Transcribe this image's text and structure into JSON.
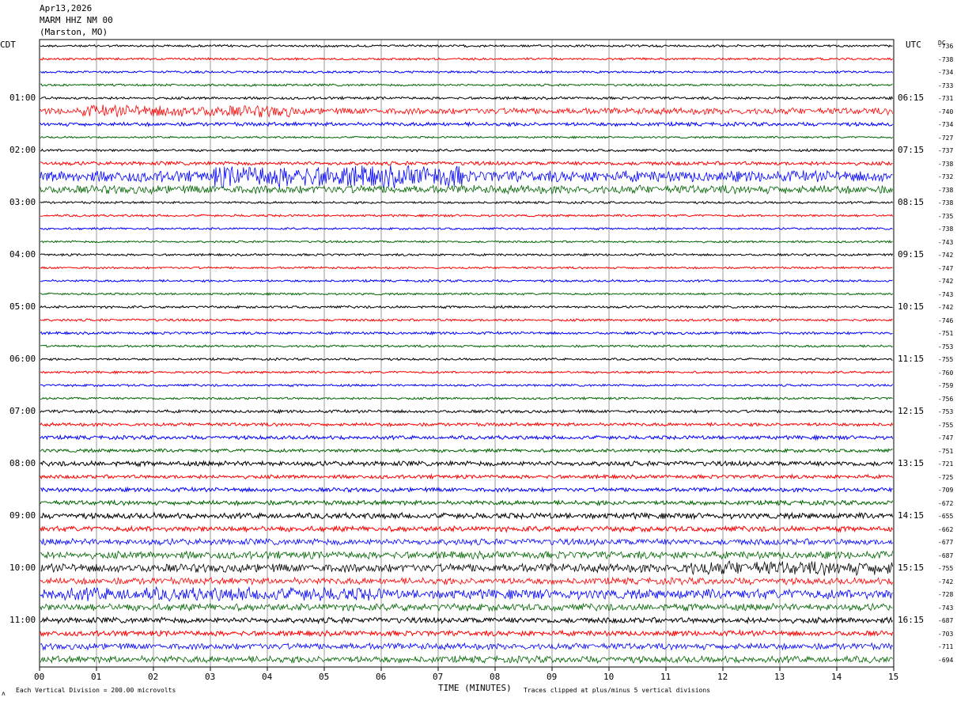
{
  "header": {
    "date": "Apr13,2026",
    "station": "MARM HHZ NM 00",
    "location": "(Marston, MO)"
  },
  "left_zone": "CDT",
  "right_zone": "UTC",
  "dc_header": "DC",
  "footer": {
    "scale_note": "Each Vertical Division =  200.00 microvolts",
    "x_title": "TIME (MINUTES)",
    "clip_note": "Traces clipped at plus/minus 5 vertical divisions",
    "corner_mark": "ʌ"
  },
  "colors": {
    "trace_cycle": [
      "#000000",
      "#ff0000",
      "#0000ff",
      "#006400"
    ],
    "grid": "#000000"
  },
  "chart_data": {
    "type": "line",
    "title": "",
    "xlabel": "TIME (MINUTES)",
    "x_ticks": [
      "00",
      "01",
      "02",
      "03",
      "04",
      "05",
      "06",
      "07",
      "08",
      "09",
      "10",
      "11",
      "12",
      "13",
      "14",
      "15"
    ],
    "xlim": [
      0,
      15
    ],
    "rows_per_hour": 4,
    "minutes_per_row": 15,
    "left_hour_labels": [
      "01:00",
      "02:00",
      "03:00",
      "04:00",
      "05:00",
      "06:00",
      "07:00",
      "08:00",
      "09:00",
      "10:00",
      "11:00"
    ],
    "right_hour_labels": [
      "06:15",
      "07:15",
      "08:15",
      "09:15",
      "10:15",
      "11:15",
      "12:15",
      "13:15",
      "14:15",
      "15:15",
      "16:15"
    ],
    "dc_offsets": [
      "-736",
      "-738",
      "-734",
      "-733",
      "-731",
      "-740",
      "-734",
      "-727",
      "-737",
      "-738",
      "-732",
      "-738",
      "-738",
      "-735",
      "-738",
      "-743",
      "-742",
      "-747",
      "-742",
      "-743",
      "-742",
      "-746",
      "-751",
      "-753",
      "-755",
      "-760",
      "-759",
      "-756",
      "-753",
      "-755",
      "-747",
      "-751",
      "-721",
      "-725",
      "-709",
      "-672",
      "-655",
      "-662",
      "-677",
      "-687",
      "-755",
      "-742",
      "-728",
      "-743",
      "-687",
      "-703",
      "-711",
      "-694"
    ],
    "row_amplitude": [
      1.2,
      1.2,
      1.2,
      1.2,
      1.4,
      3.5,
      2.0,
      1.0,
      1.3,
      2.0,
      6.0,
      4.5,
      1.2,
      1.2,
      1.1,
      1.1,
      1.2,
      1.1,
      1.2,
      1.1,
      1.3,
      1.3,
      1.4,
      1.2,
      1.2,
      1.2,
      1.2,
      1.2,
      1.6,
      1.8,
      2.0,
      1.8,
      2.6,
      2.0,
      2.2,
      2.4,
      3.0,
      2.8,
      3.4,
      4.0,
      4.6,
      3.6,
      5.2,
      3.8,
      3.0,
      2.8,
      3.4,
      3.6
    ],
    "grid": true
  }
}
